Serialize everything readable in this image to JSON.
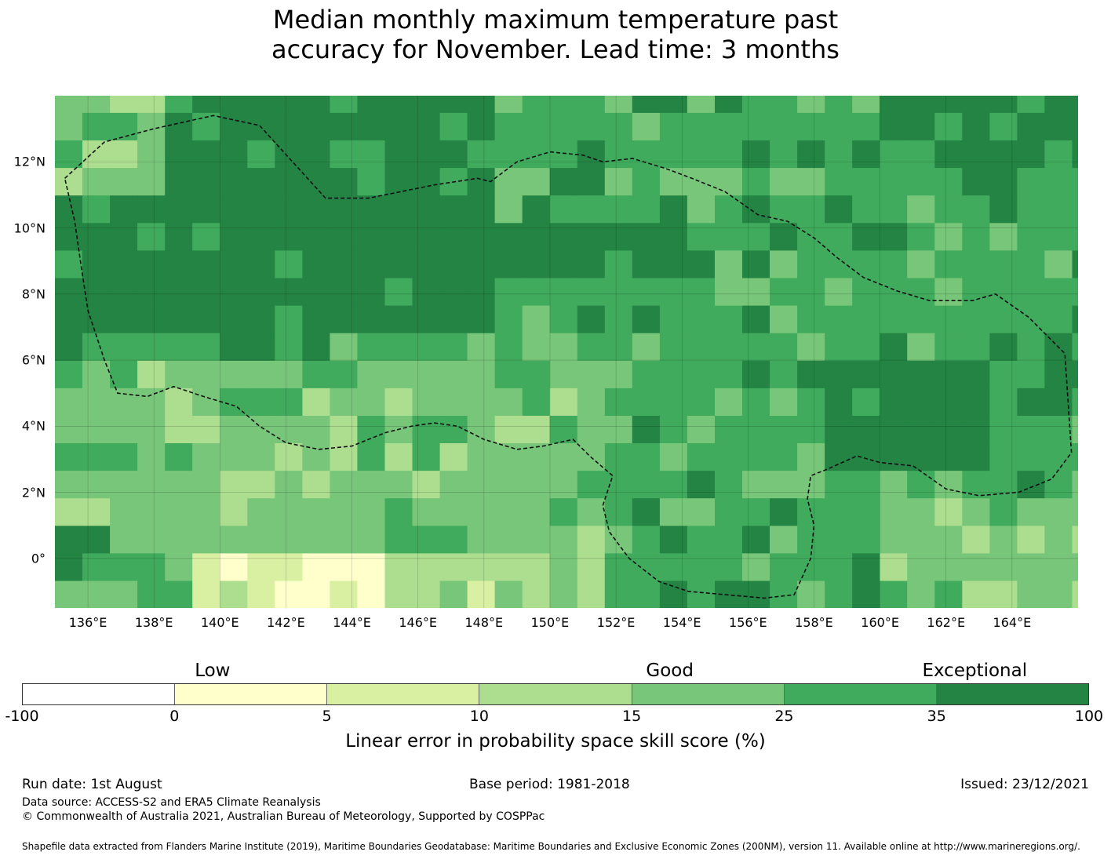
{
  "title": {
    "line1": "Median monthly maximum temperature past",
    "line2": "accuracy for November. Lead time: 3 months"
  },
  "map": {
    "lon_range": [
      135,
      166
    ],
    "lat_range": [
      -1.5,
      14
    ],
    "x_ticks": [
      "136°E",
      "138°E",
      "140°E",
      "142°E",
      "144°E",
      "146°E",
      "148°E",
      "150°E",
      "152°E",
      "154°E",
      "156°E",
      "158°E",
      "160°E",
      "162°E",
      "164°E"
    ],
    "y_ticks": [
      "12°N",
      "10°N",
      "8°N",
      "6°N",
      "4°N",
      "2°N",
      "0°"
    ],
    "gridlines": true,
    "boundary_style": "dashed",
    "boundary": [
      [
        135.3,
        11.5
      ],
      [
        136.5,
        12.6
      ],
      [
        138,
        13
      ],
      [
        139.8,
        13.4
      ],
      [
        141.2,
        13.1
      ],
      [
        142.2,
        12
      ],
      [
        143.2,
        10.9
      ],
      [
        144.5,
        10.9
      ],
      [
        146.5,
        11.3
      ],
      [
        147.8,
        11.5
      ],
      [
        148.2,
        11.4
      ],
      [
        149,
        12
      ],
      [
        150,
        12.3
      ],
      [
        151,
        12.2
      ],
      [
        151.6,
        12
      ],
      [
        152.5,
        12.1
      ],
      [
        153.5,
        11.8
      ],
      [
        154.3,
        11.5
      ],
      [
        155.3,
        11.1
      ],
      [
        156.3,
        10.4
      ],
      [
        157.2,
        10.2
      ],
      [
        158,
        9.7
      ],
      [
        158.7,
        9.1
      ],
      [
        159.5,
        8.5
      ],
      [
        160.5,
        8.1
      ],
      [
        161.5,
        7.8
      ],
      [
        162.8,
        7.8
      ],
      [
        163.5,
        8
      ],
      [
        164.5,
        7.3
      ],
      [
        165.6,
        6.2
      ],
      [
        165.8,
        3.2
      ],
      [
        165.2,
        2.4
      ],
      [
        164.2,
        2
      ],
      [
        163,
        1.9
      ],
      [
        162,
        2.1
      ],
      [
        161,
        2.8
      ],
      [
        160,
        2.9
      ],
      [
        159.3,
        3.1
      ],
      [
        158.4,
        2.7
      ],
      [
        157.9,
        2.5
      ],
      [
        157.8,
        1.8
      ],
      [
        158,
        1
      ],
      [
        157.9,
        0
      ],
      [
        157.4,
        -1.1
      ],
      [
        156.5,
        -1.2
      ],
      [
        154.2,
        -1
      ],
      [
        153.3,
        -0.7
      ],
      [
        152.4,
        0
      ],
      [
        151.8,
        0.8
      ],
      [
        151.6,
        1.6
      ],
      [
        151.9,
        2.5
      ],
      [
        151.2,
        3.1
      ],
      [
        150.7,
        3.6
      ],
      [
        149.8,
        3.4
      ],
      [
        149,
        3.3
      ],
      [
        148,
        3.6
      ],
      [
        147.2,
        4
      ],
      [
        146.5,
        4.1
      ],
      [
        145.8,
        4
      ],
      [
        145,
        3.8
      ],
      [
        144,
        3.4
      ],
      [
        143,
        3.3
      ],
      [
        142,
        3.5
      ],
      [
        141.2,
        4
      ],
      [
        140.5,
        4.6
      ],
      [
        139.5,
        4.9
      ],
      [
        138.6,
        5.2
      ],
      [
        137.8,
        4.9
      ],
      [
        136.9,
        5
      ],
      [
        136.5,
        6
      ],
      [
        136,
        7.5
      ],
      [
        135.8,
        8.8
      ],
      [
        135.6,
        10.2
      ]
    ]
  },
  "legend": {
    "categories": [
      {
        "label": "Low",
        "at": 2.5
      },
      {
        "label": "Good",
        "at": 8.5
      },
      {
        "label": "Exceptional",
        "at": 12.5
      }
    ],
    "bins": [
      {
        "from": "-100",
        "to": "0",
        "color": "#ffffff"
      },
      {
        "from": "0",
        "to": "5",
        "color": "#ffffcc"
      },
      {
        "from": "5",
        "to": "10",
        "color": "#d9f0a3"
      },
      {
        "from": "10",
        "to": "15",
        "color": "#addd8e"
      },
      {
        "from": "15",
        "to": "25",
        "color": "#78c679"
      },
      {
        "from": "25",
        "to": "35",
        "color": "#41ab5d"
      },
      {
        "from": "35",
        "to": "100",
        "color": "#238443"
      }
    ],
    "ticks": [
      "-100",
      "0",
      "5",
      "10",
      "15",
      "25",
      "35",
      "100"
    ],
    "axis_label": "Linear error in probability space skill score (%)"
  },
  "footer": {
    "run_date": "Run date: 1st August",
    "base_period": "Base period: 1981-2018",
    "issued": "Issued: 23/12/2021",
    "data_source": "Data source: ACCESS-S2 and ERA5 Climate Reanalysis",
    "copyright": "© Commonwealth of Australia 2021, Australian Bureau of Meteorology, Supported by COSPPac",
    "shapefile": "Shapefile data extracted from Flanders Marine Institute (2019), Maritime Boundaries Geodatabase: Maritime Boundaries and Exclusive Economic Zones (200NM), version 11. Available online at http://www.marineregions.org/."
  }
}
